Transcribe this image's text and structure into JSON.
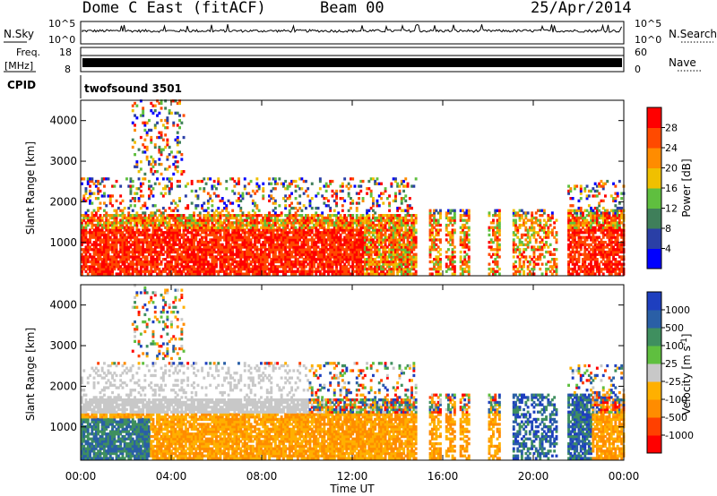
{
  "header": {
    "radar": "Dome C East (fitACF)",
    "beam": "Beam 00",
    "date": "25/Apr/2014"
  },
  "panels": {
    "nsky": {
      "label": "N.Sky",
      "left_ticks": [
        "10^5",
        "10^0"
      ],
      "right_ticks": [
        "10^5",
        "10^0"
      ],
      "right_label": "N.Search"
    },
    "freq": {
      "label_line1": "Freq.",
      "label_line2": "[MHz]",
      "left_ticks": [
        "18",
        "8"
      ],
      "right_ticks": [
        "60",
        "0"
      ],
      "right_label": "Nave"
    },
    "cpid": {
      "label": "CPID",
      "program": "twofsound 3501"
    }
  },
  "chart_data": [
    {
      "type": "heatmap",
      "name": "power",
      "ylabel": "Slant Range [km]",
      "xlabel": "Time UT",
      "xlim": [
        0,
        24
      ],
      "ylim": [
        180,
        4500
      ],
      "x_ticks": [
        "00:00",
        "04:00",
        "08:00",
        "12:00",
        "16:00",
        "20:00",
        "00:00"
      ],
      "x_tick_values": [
        0,
        4,
        8,
        12,
        16,
        20,
        24
      ],
      "y_ticks": [
        1000,
        2000,
        3000,
        4000
      ],
      "colorbar": {
        "label": "Power [dB]",
        "ticks": [
          "28",
          "24",
          "20",
          "16",
          "12",
          "8",
          "4"
        ],
        "colors": [
          "#0000ff",
          "#2a3fa6",
          "#3f7f5a",
          "#5fbf3f",
          "#f0c000",
          "#ff8c00",
          "#ff4a00",
          "#ff0000"
        ]
      }
    },
    {
      "type": "heatmap",
      "name": "velocity",
      "ylabel": "Slant Range [km]",
      "xlabel": "Time UT",
      "xlim": [
        0,
        24
      ],
      "ylim": [
        180,
        4500
      ],
      "x_ticks": [
        "00:00",
        "04:00",
        "08:00",
        "12:00",
        "16:00",
        "20:00",
        "00:00"
      ],
      "x_tick_values": [
        0,
        4,
        8,
        12,
        16,
        20,
        24
      ],
      "y_ticks": [
        1000,
        2000,
        3000,
        4000
      ],
      "colorbar": {
        "label": "Velocity [m s",
        "label_sup": "-1",
        "label_close": "]",
        "ticks": [
          "1000",
          "500",
          "100",
          "25",
          "-25",
          "-100",
          "-500",
          "-1000"
        ],
        "colors": [
          "#ff0000",
          "#ff4000",
          "#ff8c00",
          "#ffb000",
          "#c8c8c8",
          "#5fbf3f",
          "#3f8f5f",
          "#2a5fa6",
          "#1e3fbf"
        ]
      }
    }
  ]
}
